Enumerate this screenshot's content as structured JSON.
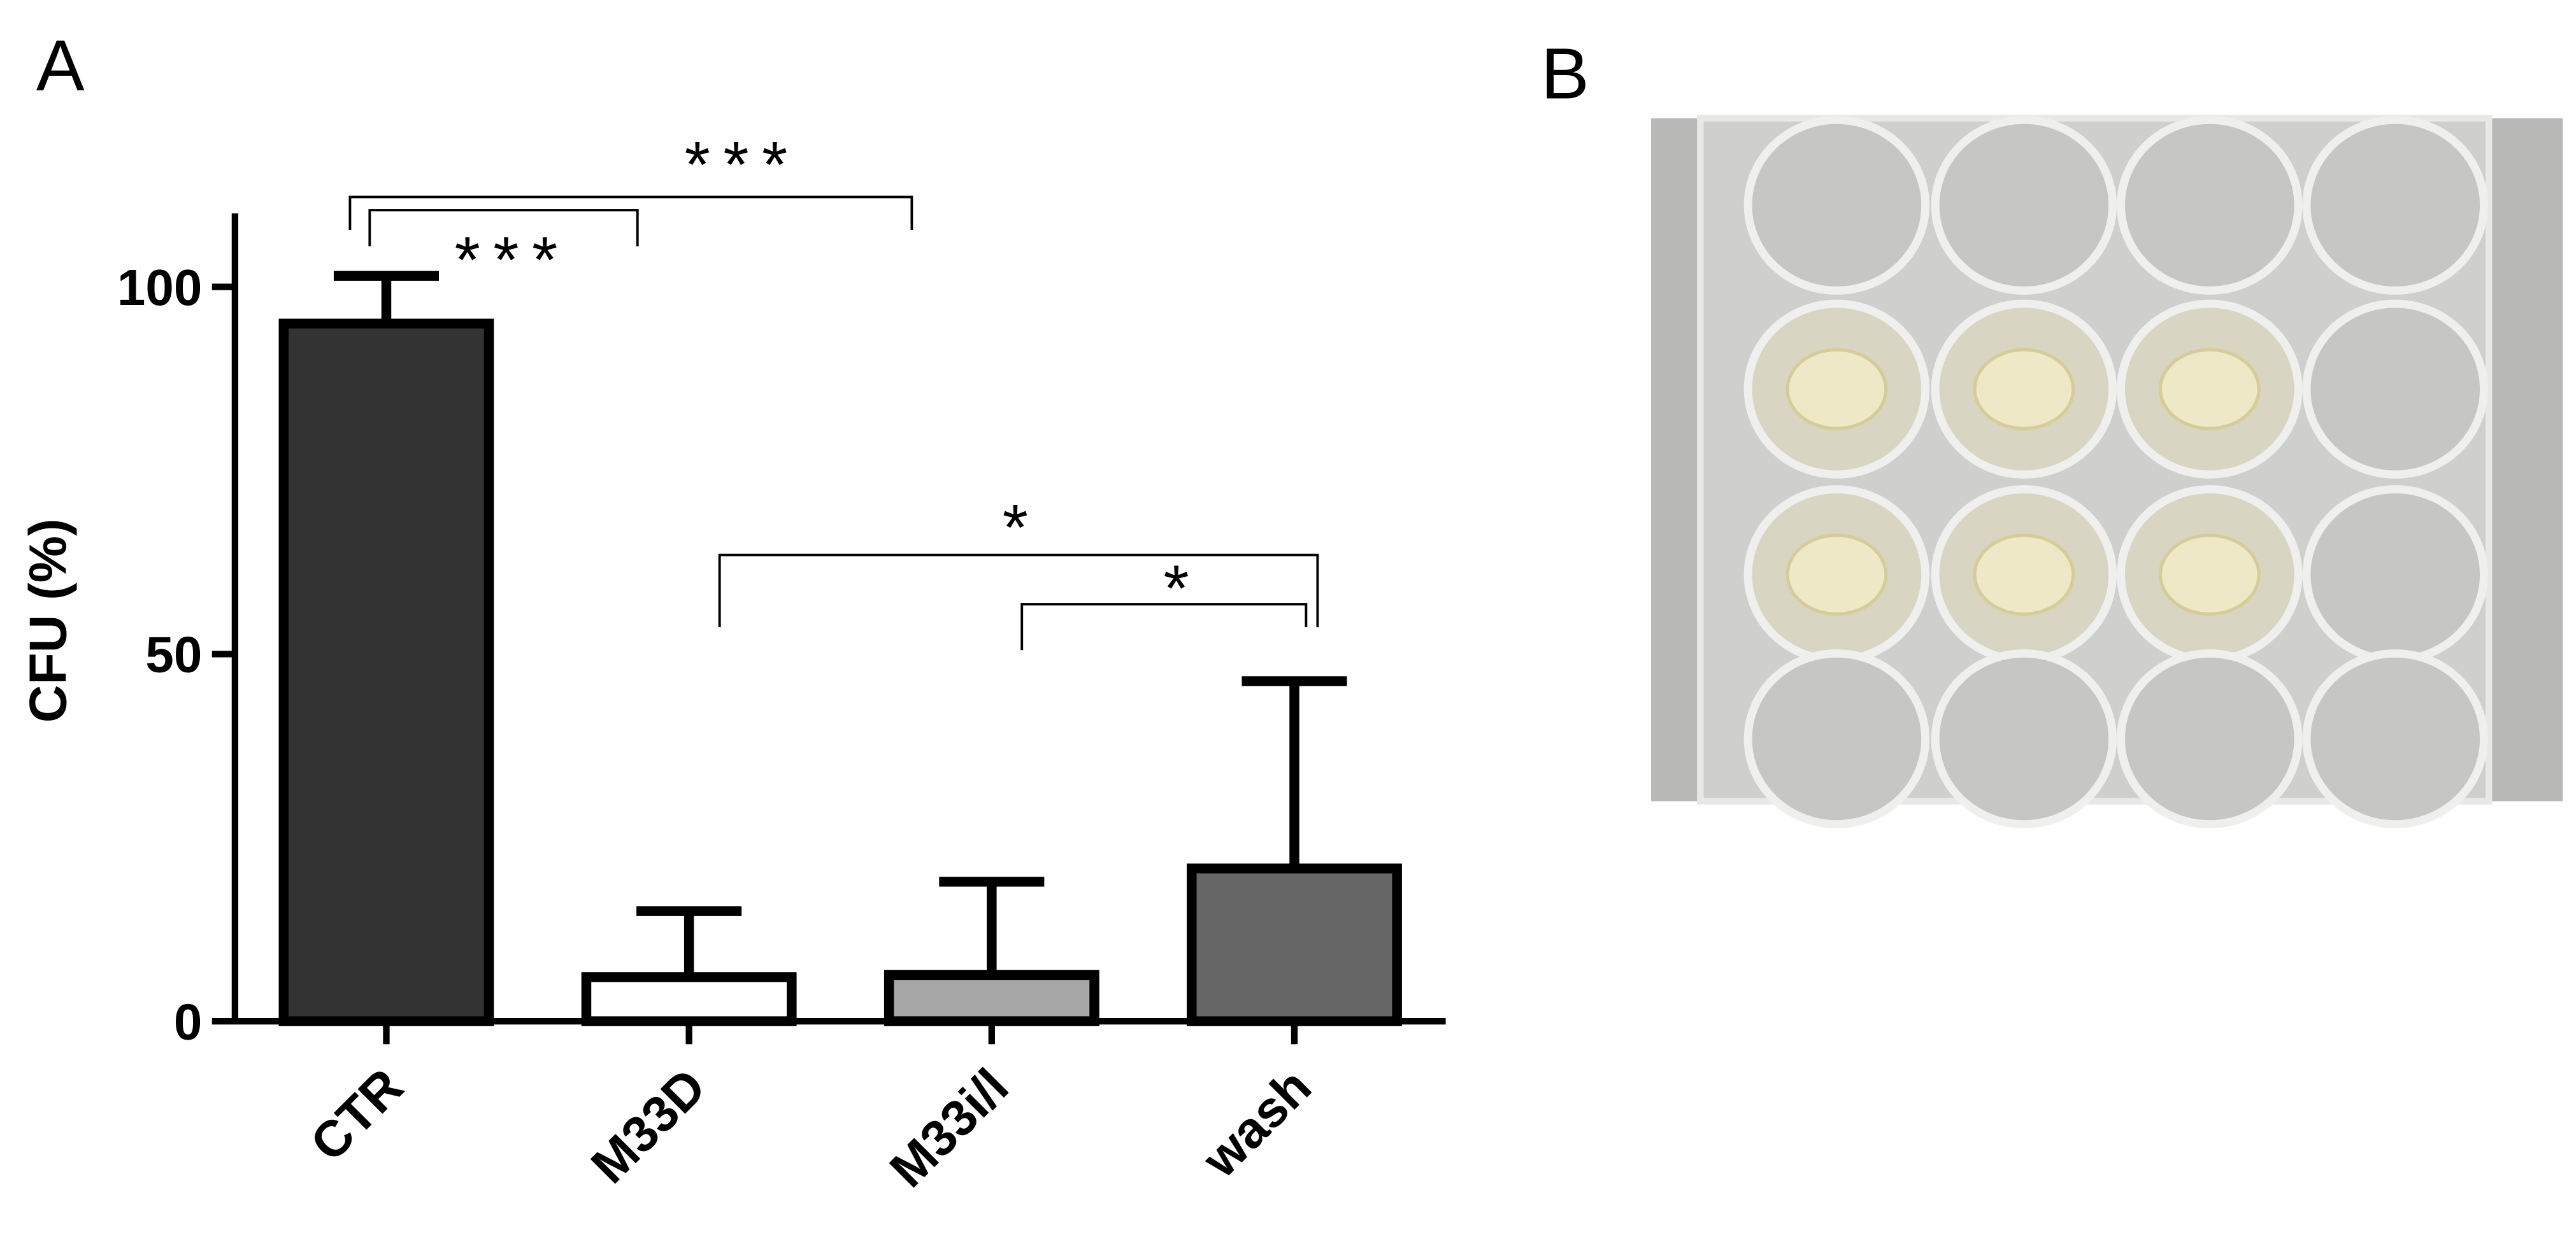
{
  "panel_labels": [
    "A",
    "B"
  ],
  "chart_data": {
    "type": "bar",
    "ylabel": "CFU (%)",
    "categories": [
      "CTR",
      "M33D",
      "M33i/l",
      "wash"
    ],
    "values": [
      95,
      6,
      6.3,
      20.8
    ],
    "errors": [
      6.5,
      9,
      12.7,
      25.5
    ],
    "colors": [
      "#333333",
      "#ffffff",
      "#a6a6a6",
      "#666666"
    ],
    "ylim": [
      0,
      110
    ],
    "yticks": [
      0,
      50,
      100
    ],
    "annotations": [
      {
        "label": "***",
        "from": 0,
        "to": 1
      },
      {
        "label": "***",
        "from": 0,
        "to": 2
      },
      {
        "label": "*",
        "from": 1,
        "to": 3
      },
      {
        "label": "*",
        "from": 2,
        "to": 3
      }
    ]
  }
}
